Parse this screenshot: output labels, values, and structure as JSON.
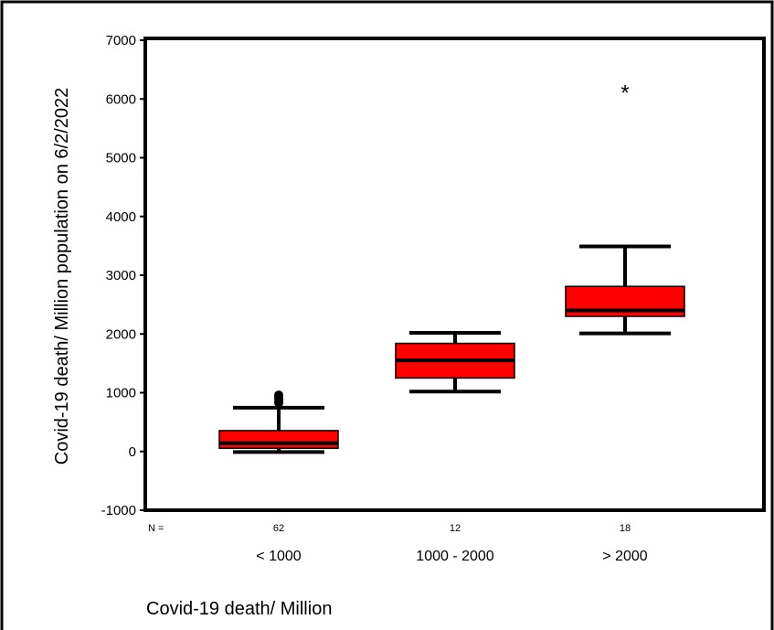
{
  "chart_data": {
    "type": "box",
    "xlabel": "Covid-19 death/ Million",
    "ylabel": "Covid-19 death/ Million population on 6/2/2022",
    "ylim": [
      -1000,
      7000
    ],
    "yticks": [
      -1000,
      0,
      1000,
      2000,
      3000,
      4000,
      5000,
      6000,
      7000
    ],
    "n_label": "N =",
    "categories": [
      "< 1000",
      "1000 - 2000",
      "> 2000"
    ],
    "n_values": [
      "62",
      "12",
      "18"
    ],
    "boxes": [
      {
        "category": "< 1000",
        "whisker_low": -10,
        "q1": 55,
        "median": 140,
        "q3": 355,
        "whisker_high": 745,
        "outliers": [
          830,
          880,
          920,
          960
        ],
        "extremes": []
      },
      {
        "category": "1000 - 2000",
        "whisker_low": 1020,
        "q1": 1250,
        "median": 1550,
        "q3": 1840,
        "whisker_high": 2020,
        "outliers": [],
        "extremes": []
      },
      {
        "category": "> 2000",
        "whisker_low": 2010,
        "q1": 2300,
        "median": 2400,
        "q3": 2810,
        "whisker_high": 3490,
        "outliers": [],
        "extremes": [
          6140
        ]
      }
    ],
    "box_color": "#ff0000",
    "grid": false
  }
}
